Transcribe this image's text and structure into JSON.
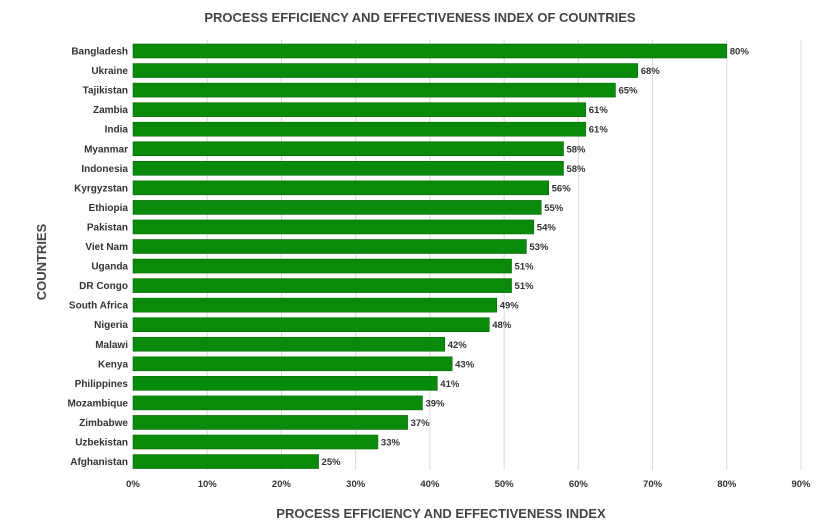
{
  "chart_data": {
    "type": "bar",
    "orientation": "horizontal",
    "title": "PROCESS EFFICIENCY AND EFFECTIVENESS INDEX OF COUNTRIES",
    "xlabel": "PROCESS EFFICIENCY AND EFFECTIVENESS INDEX",
    "ylabel": "COUNTRIES",
    "categories": [
      "Bangladesh",
      "Ukraine",
      "Tajikistan",
      "Zambia",
      "India",
      "Myanmar",
      "Indonesia",
      "Kyrgyzstan",
      "Ethiopia",
      "Pakistan",
      "Viet Nam",
      "Uganda",
      "DR Congo",
      "South Africa",
      "Nigeria",
      "Malawi",
      "Kenya",
      "Philippines",
      "Mozambique",
      "Zimbabwe",
      "Uzbekistan",
      "Afghanistan"
    ],
    "values": [
      80,
      68,
      65,
      61,
      61,
      58,
      58,
      56,
      55,
      54,
      53,
      51,
      51,
      49,
      48,
      42,
      43,
      41,
      39,
      37,
      33,
      25
    ],
    "data_labels": [
      "80%",
      "68%",
      "65%",
      "61%",
      "61%",
      "58%",
      "58%",
      "56%",
      "55%",
      "54%",
      "53%",
      "51%",
      "51%",
      "49%",
      "48%",
      "42%",
      "43%",
      "41%",
      "39%",
      "37%",
      "33%",
      "25%"
    ],
    "xlim": [
      0,
      90
    ],
    "xticks": [
      0,
      10,
      20,
      30,
      40,
      50,
      60,
      70,
      80,
      90
    ],
    "xtick_labels": [
      "0%",
      "10%",
      "20%",
      "30%",
      "40%",
      "50%",
      "60%",
      "70%",
      "80%",
      "90%"
    ],
    "grid": true,
    "legend": "none",
    "colors": {
      "bar": "#0a8a0a",
      "bar_border": "#066b06",
      "grid": "#d9d9d9",
      "text": "#333333"
    }
  }
}
